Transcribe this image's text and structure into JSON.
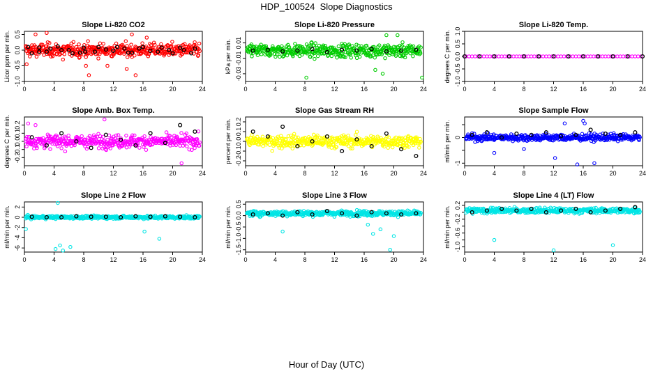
{
  "figure": {
    "title": "HDP_100524  Slope Diagnostics",
    "xlabel": "Hour of Day (UTC)"
  },
  "colors": {
    "detail_points": "various per panel",
    "hourly_points": "#000000"
  },
  "chart_data": [
    {
      "type": "scatter",
      "title": "Slope Li-820 CO2",
      "ylabel": "Licor ppm per min.",
      "color": "#ff0000",
      "xlim": [
        0,
        24
      ],
      "ylim": [
        -1.0,
        0.6
      ],
      "xticks": [
        0,
        4,
        8,
        12,
        16,
        20,
        24
      ],
      "yticks": [
        -1.0,
        -0.5,
        0.0,
        0.5
      ],
      "ytick_labels": [
        "-1.0",
        "-0.5",
        "0.0",
        "0.5"
      ],
      "series": [
        {
          "label": "",
          "x": [
            0.5,
            2.0,
            3.5,
            5.0,
            6.5,
            8.0,
            9.5,
            11.0,
            12.5,
            14.0,
            15.5,
            17.0,
            18.5,
            20.0,
            21.5,
            23.0
          ],
          "y": [
            0.1,
            -0.05,
            0.05,
            0.0,
            -0.1,
            0.08,
            -0.05,
            0.02,
            0.1,
            -0.08,
            0.05,
            -0.02,
            0.08,
            -0.1,
            0.0,
            0.05
          ]
        },
        {
          "label": "",
          "x": [
            1.0,
            2.0,
            3.0,
            4.5,
            6.0,
            7.5,
            8.2,
            10.0,
            12.0,
            13.5,
            14.5,
            16.0,
            18.0,
            19.5,
            21.0,
            22.5
          ],
          "y": [
            -0.1,
            0.08,
            -0.05,
            0.12,
            0.0,
            -0.08,
            -0.05,
            0.1,
            -0.02,
            0.05,
            -0.08,
            0.1,
            -0.05,
            0.0,
            0.08,
            -0.1
          ]
        }
      ],
      "outliers_x": [
        0.3,
        1.5,
        3.0,
        5.2,
        8.3,
        8.7,
        11.2,
        13.8,
        14.5,
        15.0,
        16.5
      ],
      "outliers_y": [
        -0.45,
        0.5,
        0.55,
        -0.3,
        -0.5,
        -0.8,
        -0.5,
        -0.6,
        0.5,
        -0.8,
        0.4
      ]
    },
    {
      "type": "scatter",
      "title": "Slope Li-820 Pressure",
      "ylabel": "kPa per min.",
      "color": "#00cc00",
      "xlim": [
        0,
        24
      ],
      "ylim": [
        -0.04,
        0.025
      ],
      "xticks": [
        0,
        4,
        8,
        12,
        16,
        20,
        24
      ],
      "yticks": [
        -0.03,
        -0.01,
        0.01
      ],
      "ytick_labels": [
        "-0.03",
        "-0.01",
        "0.01"
      ],
      "series": [
        {
          "label": "",
          "x": [
            1,
            3,
            5,
            7,
            9,
            11,
            13,
            15,
            17,
            19,
            21,
            23
          ],
          "y": [
            0.0,
            0.001,
            -0.001,
            0.0,
            0.002,
            -0.002,
            0.001,
            0.0,
            0.002,
            -0.001,
            0.0,
            0.001
          ]
        }
      ],
      "outliers_x": [
        8.2,
        17.5,
        18.5,
        19.0,
        20.5,
        23.8
      ],
      "outliers_y": [
        -0.035,
        -0.025,
        -0.03,
        0.02,
        0.02,
        -0.035
      ]
    },
    {
      "type": "scatter",
      "title": "Slope Li-820 Temp.",
      "ylabel": "degrees C per min.",
      "color": "#ff00ff",
      "xlim": [
        0,
        24
      ],
      "ylim": [
        -1.0,
        1.0
      ],
      "xticks": [
        0,
        4,
        8,
        12,
        16,
        20,
        24
      ],
      "yticks": [
        -1.0,
        -0.5,
        0.0,
        0.5,
        1.0
      ],
      "ytick_labels": [
        "-1.0",
        "-0.5",
        "0.0",
        "0.5",
        "1.0"
      ],
      "series": [
        {
          "label": "",
          "x": [
            0,
            2,
            4,
            6,
            8,
            10,
            12,
            14,
            16,
            18,
            20,
            22,
            24
          ],
          "y": [
            0,
            0,
            0,
            0,
            0,
            0,
            0,
            0,
            0,
            0,
            0,
            0,
            0
          ]
        }
      ],
      "outliers_x": [],
      "outliers_y": []
    },
    {
      "type": "scatter",
      "title": "Slope Amb. Box Temp.",
      "ylabel": "degrees C per min.",
      "color": "#ff00ff",
      "xlim": [
        0,
        24
      ],
      "ylim": [
        -0.3,
        0.3
      ],
      "xticks": [
        0,
        4,
        8,
        12,
        16,
        20,
        24
      ],
      "yticks": [
        -0.2,
        -0.1,
        0.0,
        0.1,
        0.2
      ],
      "ytick_labels": [
        "-0.2",
        "-0.1",
        "0.0",
        "0.1",
        "0.2"
      ],
      "series": [
        {
          "label": "",
          "x": [
            1,
            3,
            5,
            7,
            9,
            11,
            13,
            15,
            17,
            19,
            21,
            23
          ],
          "y": [
            0.05,
            -0.05,
            0.1,
            0.0,
            -0.08,
            0.08,
            0.02,
            -0.05,
            0.1,
            -0.02,
            0.2,
            0.12
          ]
        }
      ],
      "outliers_x": [
        10.8,
        21.2,
        0.5,
        1.5
      ],
      "outliers_y": [
        0.27,
        -0.27,
        0.22,
        0.2
      ]
    },
    {
      "type": "scatter",
      "title": "Slope Gas Stream RH",
      "ylabel": "percent per min.",
      "color": "#ffff00",
      "xlim": [
        0,
        24
      ],
      "ylim": [
        -0.25,
        0.25
      ],
      "xticks": [
        0,
        4,
        8,
        12,
        16,
        20,
        24
      ],
      "yticks": [
        -0.2,
        -0.1,
        0.0,
        0.1,
        0.2
      ],
      "ytick_labels": [
        "-0.2",
        "-0.1",
        "0.0",
        "0.1",
        "0.2"
      ],
      "series": [
        {
          "label": "",
          "x": [
            1,
            3,
            5,
            7,
            9,
            11,
            13,
            15,
            17,
            19,
            21,
            23
          ],
          "y": [
            0.1,
            0.05,
            0.15,
            -0.05,
            0.0,
            0.05,
            -0.1,
            0.02,
            -0.05,
            0.08,
            -0.08,
            -0.15
          ]
        }
      ],
      "outliers_x": [],
      "outliers_y": []
    },
    {
      "type": "scatter",
      "title": "Slope Sample Flow",
      "ylabel": "ml/min per min.",
      "color": "#0000ff",
      "xlim": [
        0,
        24
      ],
      "ylim": [
        -1.1,
        0.8
      ],
      "xticks": [
        0,
        4,
        8,
        12,
        16,
        20,
        24
      ],
      "yticks": [
        -1.0,
        -0.5,
        0.0,
        0.5
      ],
      "ytick_labels": [
        "-1",
        "",
        "0",
        ""
      ],
      "series": [
        {
          "label": "",
          "x": [
            1,
            3,
            5,
            7,
            9,
            11,
            13,
            15,
            17,
            19,
            21,
            23
          ],
          "y": [
            0.1,
            0.2,
            0.0,
            0.15,
            0.1,
            0.2,
            0.05,
            0.1,
            0.3,
            0.15,
            0.1,
            0.2
          ]
        }
      ],
      "outliers_x": [
        4.0,
        8.0,
        12.2,
        13.5,
        15.2,
        16.0,
        16.2,
        17.5
      ],
      "outliers_y": [
        -0.6,
        -0.45,
        -0.8,
        0.55,
        -1.05,
        0.65,
        0.55,
        -1.0
      ]
    },
    {
      "type": "scatter",
      "title": "Slope Line 2 Flow",
      "ylabel": "ml/min per min.",
      "color": "#00e5e5",
      "xlim": [
        0,
        24
      ],
      "ylim": [
        -6.8,
        3.0
      ],
      "xticks": [
        0,
        4,
        8,
        12,
        16,
        20,
        24
      ],
      "yticks": [
        -6,
        -4,
        -2,
        0,
        2
      ],
      "ytick_labels": [
        "-6",
        "-4",
        "-2",
        "0",
        "2"
      ],
      "series": [
        {
          "label": "",
          "x": [
            1,
            3,
            5,
            7,
            9,
            11,
            13,
            15,
            17,
            19,
            21,
            23
          ],
          "y": [
            0.1,
            0.0,
            0.0,
            0.2,
            0.1,
            0.1,
            0.0,
            0.2,
            0.1,
            0.2,
            0.1,
            0.0
          ]
        }
      ],
      "outliers_x": [
        0.2,
        4.5,
        4.2,
        4.8,
        5.2,
        6.2,
        16.2,
        18.2,
        2.5
      ],
      "outliers_y": [
        -2.3,
        2.8,
        -6.2,
        -5.5,
        -6.5,
        -5.8,
        -2.8,
        -4.2,
        0.3
      ]
    },
    {
      "type": "scatter",
      "title": "Slope Line 3 Flow",
      "ylabel": "ml/min per min.",
      "color": "#00e5e5",
      "xlim": [
        0,
        24
      ],
      "ylim": [
        -1.6,
        0.6
      ],
      "xticks": [
        0,
        4,
        8,
        12,
        16,
        20,
        24
      ],
      "yticks": [
        -1.5,
        -1.0,
        -0.5,
        0.0,
        0.5
      ],
      "ytick_labels": [
        "-1.5",
        "-1.0",
        "-0.5",
        "0.0",
        "0.5"
      ],
      "series": [
        {
          "label": "",
          "x": [
            1,
            3,
            5,
            7,
            9,
            11,
            13,
            15,
            17,
            19,
            21,
            23
          ],
          "y": [
            0.05,
            0.1,
            0.0,
            0.15,
            0.05,
            0.2,
            0.1,
            0.0,
            0.15,
            0.1,
            0.05,
            0.1
          ]
        }
      ],
      "outliers_x": [
        5.0,
        16.5,
        17.2,
        18.2,
        19.5,
        20.0
      ],
      "outliers_y": [
        -0.7,
        -0.4,
        -0.8,
        -0.6,
        -1.5,
        -0.9
      ]
    },
    {
      "type": "scatter",
      "title": "Slope Line 4 (LT) Flow",
      "ylabel": "ml/min per min.",
      "color": "#00e5e5",
      "xlim": [
        0,
        24
      ],
      "ylim": [
        -1.15,
        0.3
      ],
      "xticks": [
        0,
        4,
        8,
        12,
        16,
        20,
        24
      ],
      "yticks": [
        -1.0,
        -0.8,
        -0.6,
        -0.4,
        -0.2,
        0.0,
        0.2
      ],
      "ytick_labels": [
        "-1.0",
        "",
        "-0.6",
        "",
        "-0.2",
        "",
        "0.2"
      ],
      "series": [
        {
          "label": "",
          "x": [
            1,
            3,
            5,
            7,
            9,
            11,
            13,
            15,
            17,
            19,
            21,
            23
          ],
          "y": [
            0.0,
            0.05,
            0.1,
            0.05,
            0.1,
            0.0,
            0.05,
            0.1,
            0.0,
            0.05,
            0.1,
            0.15
          ]
        }
      ],
      "outliers_x": [
        4.0,
        12.0,
        20.0
      ],
      "outliers_y": [
        -0.8,
        -1.1,
        -0.95
      ]
    }
  ]
}
